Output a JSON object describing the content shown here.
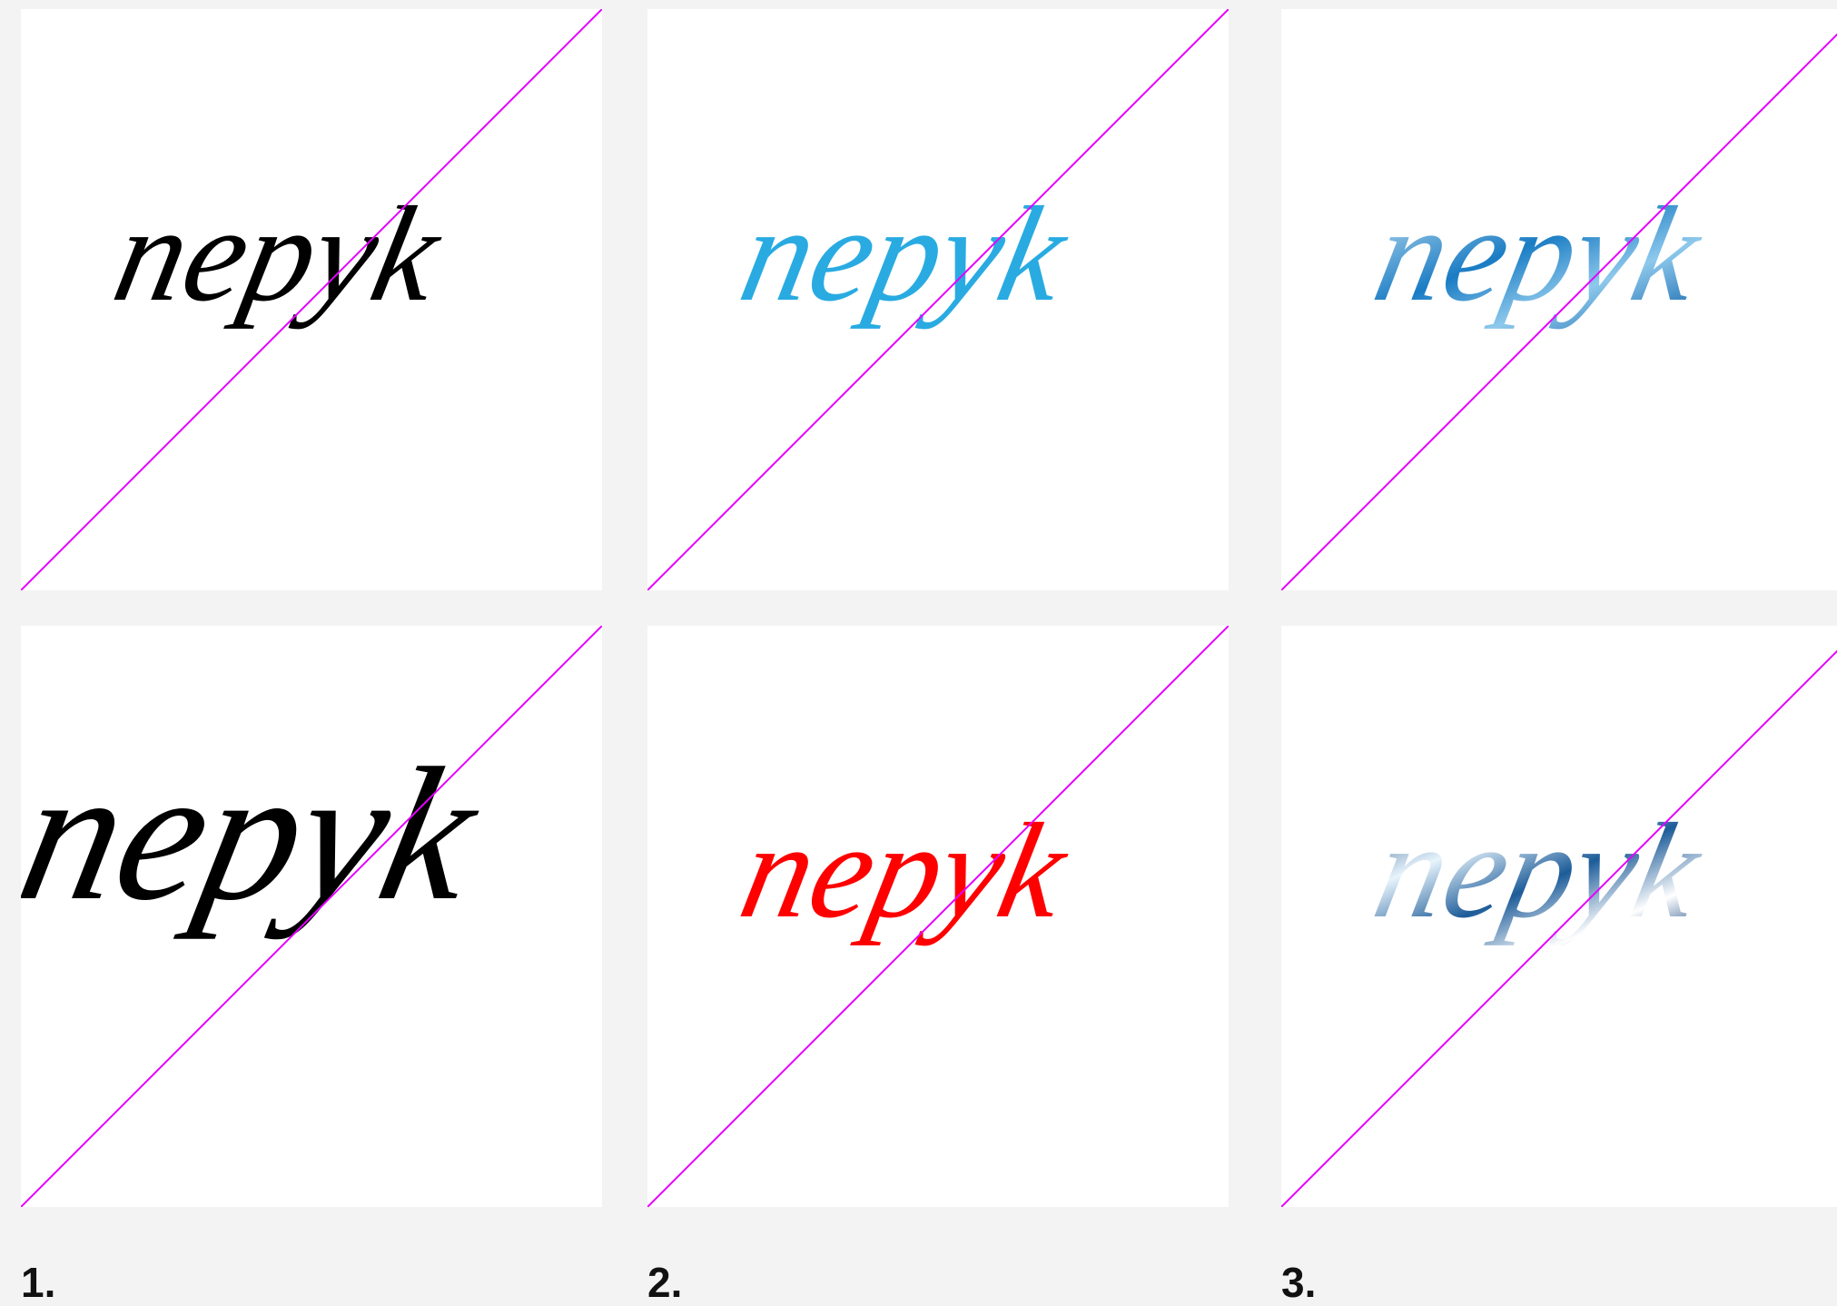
{
  "labels": [
    "1.",
    "2.",
    "3."
  ],
  "panels": [
    {
      "word": "nepyk",
      "color": "#000000"
    },
    {
      "word": "nepyk",
      "color": "#29abe2"
    },
    {
      "word": "nepyk",
      "color": "gradient-blue"
    },
    {
      "word": "nepyk",
      "color": "#000000"
    },
    {
      "word": "nepyk",
      "color": "#ff0000"
    },
    {
      "word": "nepyk",
      "color": "gradient-dark"
    }
  ]
}
